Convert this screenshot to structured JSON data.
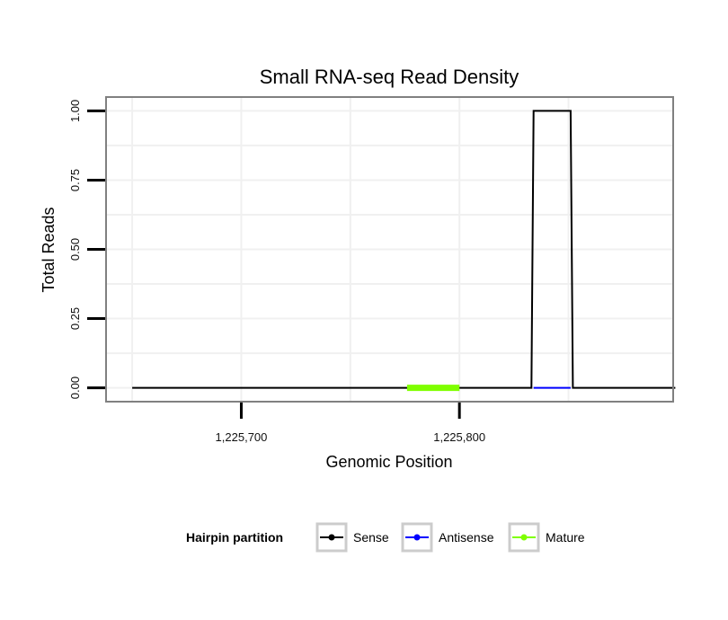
{
  "chart_data": {
    "type": "line",
    "title": "Small RNA-seq Read Density",
    "xlabel": "Genomic Position",
    "ylabel": "Total Reads",
    "xlim": [
      1225638,
      1225898
    ],
    "ylim": [
      -0.05,
      1.05
    ],
    "x_ticks": [
      {
        "value": 1225700,
        "label": "1,225,700"
      },
      {
        "value": 1225800,
        "label": "1,225,800"
      }
    ],
    "y_ticks": [
      {
        "value": 0.0,
        "label": "0.00"
      },
      {
        "value": 0.25,
        "label": "0.25"
      },
      {
        "value": 0.5,
        "label": "0.50"
      },
      {
        "value": 0.75,
        "label": "0.75"
      },
      {
        "value": 1.0,
        "label": "1.00"
      }
    ],
    "grid": true,
    "series": [
      {
        "name": "Sense",
        "color": "#000000",
        "points": [
          [
            1225650,
            0
          ],
          [
            1225833,
            0
          ],
          [
            1225834,
            1
          ],
          [
            1225851,
            1
          ],
          [
            1225852,
            0
          ],
          [
            1225899,
            0
          ]
        ]
      },
      {
        "name": "Antisense",
        "color": "#0000ff",
        "points": [
          [
            1225834,
            0
          ],
          [
            1225851,
            0
          ]
        ]
      },
      {
        "name": "Mature",
        "color": "#7fff00",
        "points": [
          [
            1225776,
            0
          ],
          [
            1225800,
            0
          ]
        ]
      }
    ],
    "legend": {
      "title": "Hairpin partition",
      "placement": "bottom",
      "entries": [
        {
          "label": "Sense",
          "color": "#000000"
        },
        {
          "label": "Antisense",
          "color": "#0000ff"
        },
        {
          "label": "Mature",
          "color": "#7fff00"
        }
      ]
    }
  }
}
